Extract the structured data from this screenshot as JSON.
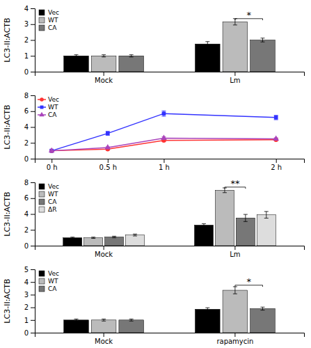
{
  "chart_data": [
    {
      "type": "bar",
      "ylabel": "LC3-II:ACTB",
      "categories": [
        "Mock",
        "Lm"
      ],
      "series": [
        {
          "name": "Vec",
          "color": "#000000",
          "values": [
            1.0,
            1.75
          ],
          "errors": [
            0.07,
            0.15
          ]
        },
        {
          "name": "WT",
          "color": "#bbbbbb",
          "values": [
            1.0,
            3.15
          ],
          "errors": [
            0.07,
            0.2
          ]
        },
        {
          "name": "CA",
          "color": "#777777",
          "values": [
            1.0,
            2.0
          ],
          "errors": [
            0.07,
            0.12
          ]
        }
      ],
      "ylim": [
        0,
        4
      ],
      "yticks": [
        0,
        1,
        2,
        3,
        4
      ],
      "legend": "upper left",
      "annotations": [
        {
          "text": "*",
          "category": "Lm",
          "between": [
            "WT",
            "CA"
          ],
          "y": 3.35
        }
      ]
    },
    {
      "type": "line",
      "ylabel": "LC3-II:ACTB",
      "x": [
        0,
        0.5,
        1,
        2
      ],
      "xlim": [
        -0.15,
        2.25
      ],
      "xticks": [
        {
          "value": 0,
          "label": "0 h"
        },
        {
          "value": 0.5,
          "label": "0.5 h"
        },
        {
          "value": 1,
          "label": "1 h"
        },
        {
          "value": 2,
          "label": "2 h"
        }
      ],
      "series": [
        {
          "name": "Vec",
          "color": "#ff3333",
          "marker": "circle",
          "values": [
            1.0,
            1.2,
            2.3,
            2.4
          ],
          "errors": [
            0.05,
            0.1,
            0.15,
            0.12
          ]
        },
        {
          "name": "WT",
          "color": "#3333ff",
          "marker": "square",
          "values": [
            1.0,
            3.2,
            5.7,
            5.2
          ],
          "errors": [
            0.05,
            0.25,
            0.35,
            0.28
          ]
        },
        {
          "name": "CA",
          "color": "#aa44bb",
          "marker": "triangle",
          "values": [
            1.0,
            1.4,
            2.6,
            2.5
          ],
          "errors": [
            0.05,
            0.1,
            0.18,
            0.14
          ]
        }
      ],
      "ylim": [
        0,
        8
      ],
      "yticks": [
        0,
        2,
        4,
        6,
        8
      ],
      "legend": "upper left"
    },
    {
      "type": "bar",
      "ylabel": "LC3-II:ACTB",
      "categories": [
        "Mock",
        "Lm"
      ],
      "series": [
        {
          "name": "Vec",
          "color": "#000000",
          "values": [
            1.0,
            2.6
          ],
          "errors": [
            0.08,
            0.18
          ]
        },
        {
          "name": "WT",
          "color": "#bbbbbb",
          "values": [
            1.0,
            7.0
          ],
          "errors": [
            0.08,
            0.3
          ]
        },
        {
          "name": "CA",
          "color": "#777777",
          "values": [
            1.1,
            3.5
          ],
          "errors": [
            0.1,
            0.45
          ]
        },
        {
          "name": "ΔR",
          "color": "#dddddd",
          "values": [
            1.35,
            3.9
          ],
          "errors": [
            0.12,
            0.42
          ]
        }
      ],
      "ylim": [
        0,
        8
      ],
      "yticks": [
        0,
        2,
        4,
        6,
        8
      ],
      "legend": "upper left",
      "annotations": [
        {
          "text": "**",
          "category": "Lm",
          "between": [
            "WT",
            "CA"
          ],
          "y": 7.4
        }
      ]
    },
    {
      "type": "bar",
      "ylabel": "LC3-II:ACTB",
      "categories": [
        "Mock",
        "rapamycin"
      ],
      "series": [
        {
          "name": "Vec",
          "color": "#000000",
          "values": [
            1.0,
            1.85
          ],
          "errors": [
            0.08,
            0.12
          ]
        },
        {
          "name": "WT",
          "color": "#bbbbbb",
          "values": [
            1.0,
            3.35
          ],
          "errors": [
            0.08,
            0.28
          ]
        },
        {
          "name": "CA",
          "color": "#777777",
          "values": [
            1.0,
            1.9
          ],
          "errors": [
            0.08,
            0.12
          ]
        }
      ],
      "ylim": [
        0,
        5
      ],
      "yticks": [
        0,
        1,
        2,
        3,
        4,
        5
      ],
      "legend": "upper left",
      "annotations": [
        {
          "text": "*",
          "category": "rapamycin",
          "between": [
            "WT",
            "CA"
          ],
          "y": 3.75
        }
      ]
    }
  ]
}
